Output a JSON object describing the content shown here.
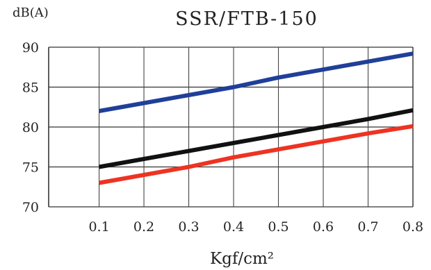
{
  "chart_data": {
    "type": "line",
    "title": "SSR/FTB-150",
    "ylabel": "dB(A)",
    "xlabel": "Kgf/cm²",
    "x": [
      0.1,
      0.2,
      0.3,
      0.4,
      0.5,
      0.6,
      0.7,
      0.8
    ],
    "x_tick_labels": [
      "0.1",
      "0.2",
      "0.3",
      "0.4",
      "0.5",
      "0.6",
      "0.7",
      "0.8"
    ],
    "xlim": [
      -0.0125,
      0.8
    ],
    "y_tick_labels": [
      "90",
      "85",
      "80",
      "75",
      "70"
    ],
    "y_ticks": [
      90,
      85,
      80,
      75,
      70
    ],
    "ylim": [
      70,
      90
    ],
    "grid": true,
    "legend": "none",
    "series": [
      {
        "color": "#1f3f99",
        "values": [
          82,
          83,
          84,
          85,
          86.2,
          87.2,
          88.2,
          89.2
        ]
      },
      {
        "color": "#111111",
        "values": [
          75,
          76,
          77,
          78,
          79,
          80,
          81,
          82.1
        ]
      },
      {
        "color": "#ee3322",
        "values": [
          73,
          74,
          75,
          76.2,
          77.2,
          78.2,
          79.2,
          80.1
        ]
      }
    ]
  }
}
